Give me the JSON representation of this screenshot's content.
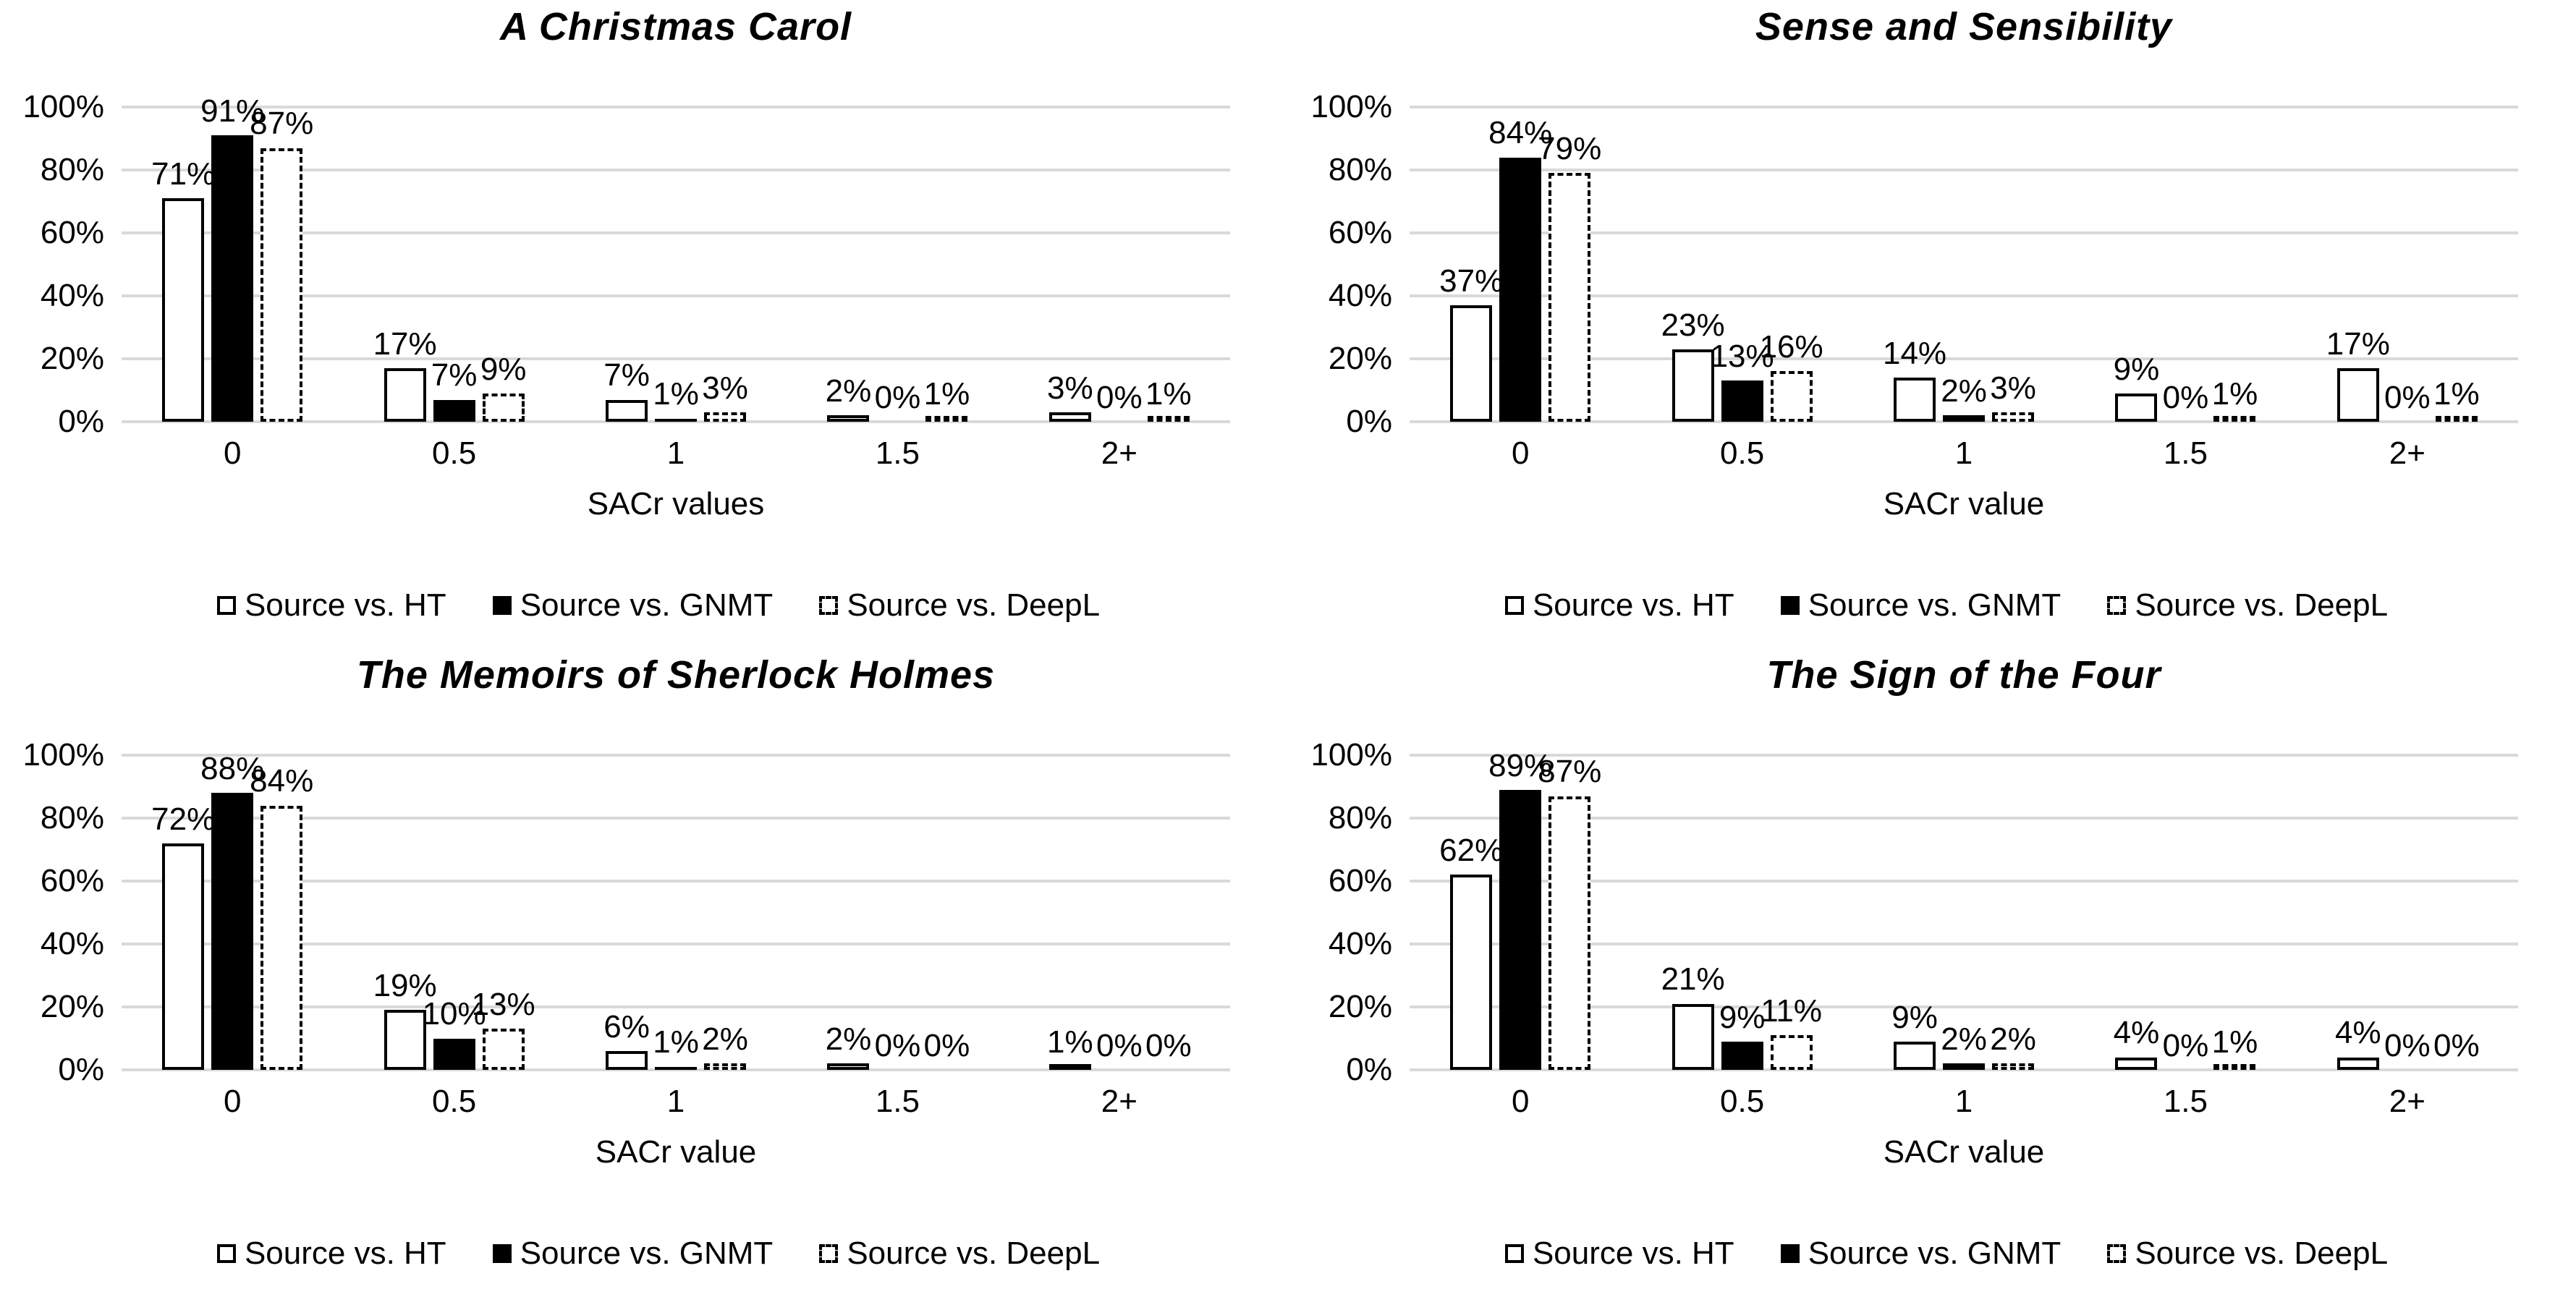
{
  "colors": {
    "background": "#ffffff",
    "foreground": "#000000",
    "gridline": "#d9d9d9"
  },
  "chart_data": [
    {
      "type": "bar",
      "title": "A Christmas Carol",
      "xlabel": "SACr values",
      "ylabel": "",
      "ylim": [
        0,
        100
      ],
      "grid": true,
      "legend_position": "bottom",
      "value_suffix": "%",
      "yticks": [
        "100%",
        "80%",
        "60%",
        "40%",
        "20%",
        "0%"
      ],
      "categories": [
        "0",
        "0.5",
        "1",
        "1.5",
        "2+"
      ],
      "series": [
        {
          "name": "Source vs. HT",
          "style": "white",
          "values": [
            71,
            17,
            7,
            2,
            3
          ]
        },
        {
          "name": "Source vs. GNMT",
          "style": "black",
          "values": [
            91,
            7,
            1,
            0,
            0
          ]
        },
        {
          "name": "Source vs. DeepL",
          "style": "dashed",
          "values": [
            87,
            9,
            3,
            1,
            1
          ]
        }
      ]
    },
    {
      "type": "bar",
      "title": "Sense and Sensibility",
      "xlabel": "SACr value",
      "ylabel": "",
      "ylim": [
        0,
        100
      ],
      "grid": true,
      "legend_position": "bottom",
      "value_suffix": "%",
      "yticks": [
        "100%",
        "80%",
        "60%",
        "40%",
        "20%",
        "0%"
      ],
      "categories": [
        "0",
        "0.5",
        "1",
        "1.5",
        "2+"
      ],
      "series": [
        {
          "name": "Source vs. HT",
          "style": "white",
          "values": [
            37,
            23,
            14,
            9,
            17
          ]
        },
        {
          "name": "Source vs. GNMT",
          "style": "black",
          "values": [
            84,
            13,
            2,
            0,
            0
          ]
        },
        {
          "name": "Source vs. DeepL",
          "style": "dashed",
          "values": [
            79,
            16,
            3,
            1,
            1
          ]
        }
      ]
    },
    {
      "type": "bar",
      "title": "The Memoirs of Sherlock Holmes",
      "xlabel": "SACr value",
      "ylabel": "",
      "ylim": [
        0,
        100
      ],
      "grid": true,
      "legend_position": "bottom",
      "value_suffix": "%",
      "yticks": [
        "100%",
        "80%",
        "60%",
        "40%",
        "20%",
        "0%"
      ],
      "categories": [
        "0",
        "0.5",
        "1",
        "1.5",
        "2+"
      ],
      "series": [
        {
          "name": "Source vs. HT",
          "style": "white",
          "values": [
            72,
            19,
            6,
            2,
            1
          ]
        },
        {
          "name": "Source vs. GNMT",
          "style": "black",
          "values": [
            88,
            10,
            1,
            0,
            0
          ]
        },
        {
          "name": "Source vs. DeepL",
          "style": "dashed",
          "values": [
            84,
            13,
            2,
            0,
            0
          ]
        }
      ]
    },
    {
      "type": "bar",
      "title": "The Sign of the Four",
      "xlabel": "SACr value",
      "ylabel": "",
      "ylim": [
        0,
        100
      ],
      "grid": true,
      "legend_position": "bottom",
      "value_suffix": "%",
      "yticks": [
        "100%",
        "80%",
        "60%",
        "40%",
        "20%",
        "0%"
      ],
      "categories": [
        "0",
        "0.5",
        "1",
        "1.5",
        "2+"
      ],
      "series": [
        {
          "name": "Source vs. HT",
          "style": "white",
          "values": [
            62,
            21,
            9,
            4,
            4
          ]
        },
        {
          "name": "Source vs. GNMT",
          "style": "black",
          "values": [
            89,
            9,
            2,
            0,
            0
          ]
        },
        {
          "name": "Source vs. DeepL",
          "style": "dashed",
          "values": [
            87,
            11,
            2,
            1,
            0
          ]
        }
      ]
    }
  ]
}
